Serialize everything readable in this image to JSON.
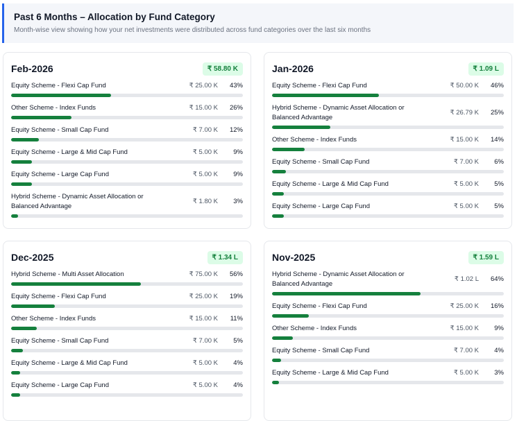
{
  "header": {
    "title": "Past 6 Months – Allocation by Fund Category",
    "subtitle": "Month-wise view showing how your net investments were distributed across fund categories over the last six months"
  },
  "colors": {
    "accent": "#2563eb",
    "bar": "#15803d",
    "badge_bg": "#dcfce7"
  },
  "months": [
    {
      "month": "Feb-2026",
      "total": "₹ 58.80 K",
      "items": [
        {
          "label": "Equity Scheme - Flexi Cap Fund",
          "amount": "₹ 25.00 K",
          "pct": "43%",
          "value": 43
        },
        {
          "label": "Other Scheme - Index Funds",
          "amount": "₹ 15.00 K",
          "pct": "26%",
          "value": 26
        },
        {
          "label": "Equity Scheme - Small Cap Fund",
          "amount": "₹ 7.00 K",
          "pct": "12%",
          "value": 12
        },
        {
          "label": "Equity Scheme - Large & Mid Cap Fund",
          "amount": "₹ 5.00 K",
          "pct": "9%",
          "value": 9
        },
        {
          "label": "Equity Scheme - Large Cap Fund",
          "amount": "₹ 5.00 K",
          "pct": "9%",
          "value": 9
        },
        {
          "label": "Hybrid Scheme - Dynamic Asset Allocation or Balanced Advantage",
          "amount": "₹ 1.80 K",
          "pct": "3%",
          "value": 3
        }
      ]
    },
    {
      "month": "Jan-2026",
      "total": "₹ 1.09 L",
      "items": [
        {
          "label": "Equity Scheme - Flexi Cap Fund",
          "amount": "₹ 50.00 K",
          "pct": "46%",
          "value": 46
        },
        {
          "label": "Hybrid Scheme - Dynamic Asset Allocation or Balanced Advantage",
          "amount": "₹ 26.79 K",
          "pct": "25%",
          "value": 25
        },
        {
          "label": "Other Scheme - Index Funds",
          "amount": "₹ 15.00 K",
          "pct": "14%",
          "value": 14
        },
        {
          "label": "Equity Scheme - Small Cap Fund",
          "amount": "₹ 7.00 K",
          "pct": "6%",
          "value": 6
        },
        {
          "label": "Equity Scheme - Large & Mid Cap Fund",
          "amount": "₹ 5.00 K",
          "pct": "5%",
          "value": 5
        },
        {
          "label": "Equity Scheme - Large Cap Fund",
          "amount": "₹ 5.00 K",
          "pct": "5%",
          "value": 5
        }
      ]
    },
    {
      "month": "Dec-2025",
      "total": "₹ 1.34 L",
      "items": [
        {
          "label": "Hybrid Scheme - Multi Asset Allocation",
          "amount": "₹ 75.00 K",
          "pct": "56%",
          "value": 56
        },
        {
          "label": "Equity Scheme - Flexi Cap Fund",
          "amount": "₹ 25.00 K",
          "pct": "19%",
          "value": 19
        },
        {
          "label": "Other Scheme - Index Funds",
          "amount": "₹ 15.00 K",
          "pct": "11%",
          "value": 11
        },
        {
          "label": "Equity Scheme - Small Cap Fund",
          "amount": "₹ 7.00 K",
          "pct": "5%",
          "value": 5
        },
        {
          "label": "Equity Scheme - Large & Mid Cap Fund",
          "amount": "₹ 5.00 K",
          "pct": "4%",
          "value": 4
        },
        {
          "label": "Equity Scheme - Large Cap Fund",
          "amount": "₹ 5.00 K",
          "pct": "4%",
          "value": 4
        }
      ]
    },
    {
      "month": "Nov-2025",
      "total": "₹ 1.59 L",
      "items": [
        {
          "label": "Hybrid Scheme - Dynamic Asset Allocation or Balanced Advantage",
          "amount": "₹ 1.02 L",
          "pct": "64%",
          "value": 64
        },
        {
          "label": "Equity Scheme - Flexi Cap Fund",
          "amount": "₹ 25.00 K",
          "pct": "16%",
          "value": 16
        },
        {
          "label": "Other Scheme - Index Funds",
          "amount": "₹ 15.00 K",
          "pct": "9%",
          "value": 9
        },
        {
          "label": "Equity Scheme - Small Cap Fund",
          "amount": "₹ 7.00 K",
          "pct": "4%",
          "value": 4
        },
        {
          "label": "Equity Scheme - Large & Mid Cap Fund",
          "amount": "₹ 5.00 K",
          "pct": "3%",
          "value": 3
        }
      ]
    }
  ]
}
